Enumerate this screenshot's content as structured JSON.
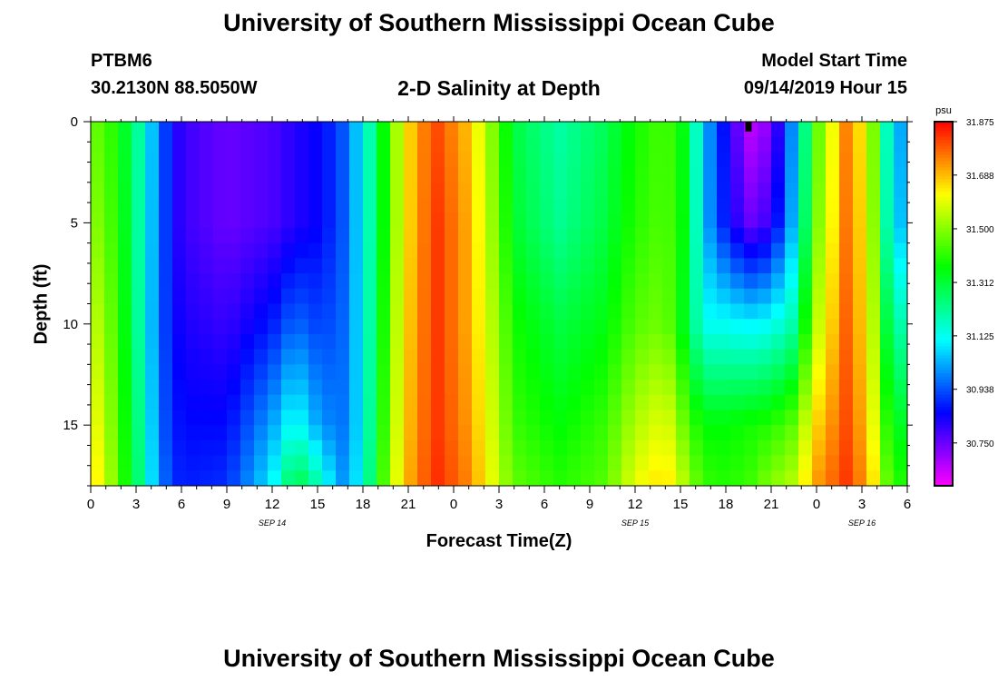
{
  "header": {
    "title": "University of Southern Mississippi Ocean Cube",
    "station": "PTBM6",
    "location": "30.2130N 88.5050W",
    "plot_title": "2-D Salinity at Depth",
    "model_start_label": "Model Start Time",
    "model_start_value": "09/14/2019 Hour 15"
  },
  "footer": {
    "title": "University of Southern Mississippi Ocean Cube"
  },
  "chart_data": {
    "type": "heatmap",
    "title": "2-D Salinity at Depth",
    "xlabel": "Forecast Time(Z)",
    "ylabel": "Depth (ft)",
    "units": "psu",
    "x_range_hours": [
      0,
      54
    ],
    "y_range_ft": [
      0,
      18
    ],
    "x_ticks": [
      "0",
      "3",
      "6",
      "9",
      "12",
      "15",
      "18",
      "21",
      "0",
      "3",
      "6",
      "9",
      "12",
      "15",
      "18",
      "21",
      "0",
      "3",
      "6"
    ],
    "y_ticks": [
      "0",
      "5",
      "10",
      "15"
    ],
    "date_labels": [
      {
        "text": "SEP 14",
        "hour": 12
      },
      {
        "text": "SEP 15",
        "hour": 36
      },
      {
        "text": "SEP 16",
        "hour": 51
      }
    ],
    "model_start_marker_hour": 43.5,
    "colorbar": {
      "min": 30.6,
      "max": 31.875,
      "ticks": [
        "31.875",
        "31.688",
        "31.500",
        "31.312",
        "31.125",
        "30.938",
        "30.750"
      ]
    },
    "depths_ft": [
      0,
      5,
      10,
      15,
      18
    ],
    "hours": [
      0,
      1.5,
      2.5,
      3.5,
      4.5,
      6,
      9,
      12,
      13.5,
      15,
      16.5,
      18,
      19,
      20.5,
      21.5,
      23,
      25,
      26.5,
      28,
      31,
      34,
      36,
      38,
      39.5,
      40.5,
      42,
      43.5,
      45,
      46.5,
      48,
      50,
      51.5,
      52.5,
      54
    ],
    "values": [
      [
        31.48,
        31.4,
        31.3,
        31.16,
        30.96,
        30.8,
        30.75,
        30.78,
        30.82,
        30.85,
        30.92,
        31.1,
        31.3,
        31.58,
        31.72,
        31.8,
        31.68,
        31.5,
        31.3,
        31.2,
        31.28,
        31.38,
        31.44,
        31.32,
        31.05,
        30.85,
        30.66,
        30.72,
        31.02,
        31.45,
        31.75,
        31.58,
        31.2,
        30.95
      ],
      [
        31.52,
        31.42,
        31.31,
        31.15,
        30.96,
        30.8,
        30.75,
        30.78,
        30.82,
        30.85,
        30.92,
        31.1,
        31.3,
        31.58,
        31.72,
        31.82,
        31.7,
        31.52,
        31.32,
        31.22,
        31.3,
        31.4,
        31.45,
        31.33,
        31.05,
        30.87,
        30.75,
        30.8,
        31.05,
        31.48,
        31.76,
        31.6,
        31.22,
        30.98
      ],
      [
        31.58,
        31.45,
        31.32,
        31.15,
        30.95,
        30.83,
        30.8,
        30.88,
        30.96,
        30.92,
        30.94,
        31.1,
        31.32,
        31.6,
        31.73,
        31.82,
        31.7,
        31.55,
        31.38,
        31.3,
        31.35,
        31.45,
        31.48,
        31.3,
        31.12,
        31.12,
        31.1,
        31.12,
        31.2,
        31.55,
        31.78,
        31.62,
        31.32,
        31.14
      ],
      [
        31.64,
        31.48,
        31.34,
        31.18,
        30.96,
        30.86,
        30.86,
        31.02,
        31.14,
        31.02,
        30.96,
        31.1,
        31.35,
        31.62,
        31.74,
        31.82,
        31.72,
        31.58,
        31.42,
        31.36,
        31.42,
        31.54,
        31.6,
        31.44,
        31.36,
        31.36,
        31.38,
        31.4,
        31.46,
        31.66,
        31.8,
        31.66,
        31.42,
        31.3
      ],
      [
        31.68,
        31.5,
        31.35,
        31.2,
        30.98,
        30.88,
        30.9,
        31.1,
        31.32,
        31.2,
        31.0,
        31.12,
        31.38,
        31.64,
        31.75,
        31.83,
        31.74,
        31.6,
        31.46,
        31.4,
        31.45,
        31.6,
        31.66,
        31.52,
        31.42,
        31.4,
        31.42,
        31.5,
        31.55,
        31.72,
        31.82,
        31.7,
        31.48,
        31.36
      ]
    ]
  }
}
